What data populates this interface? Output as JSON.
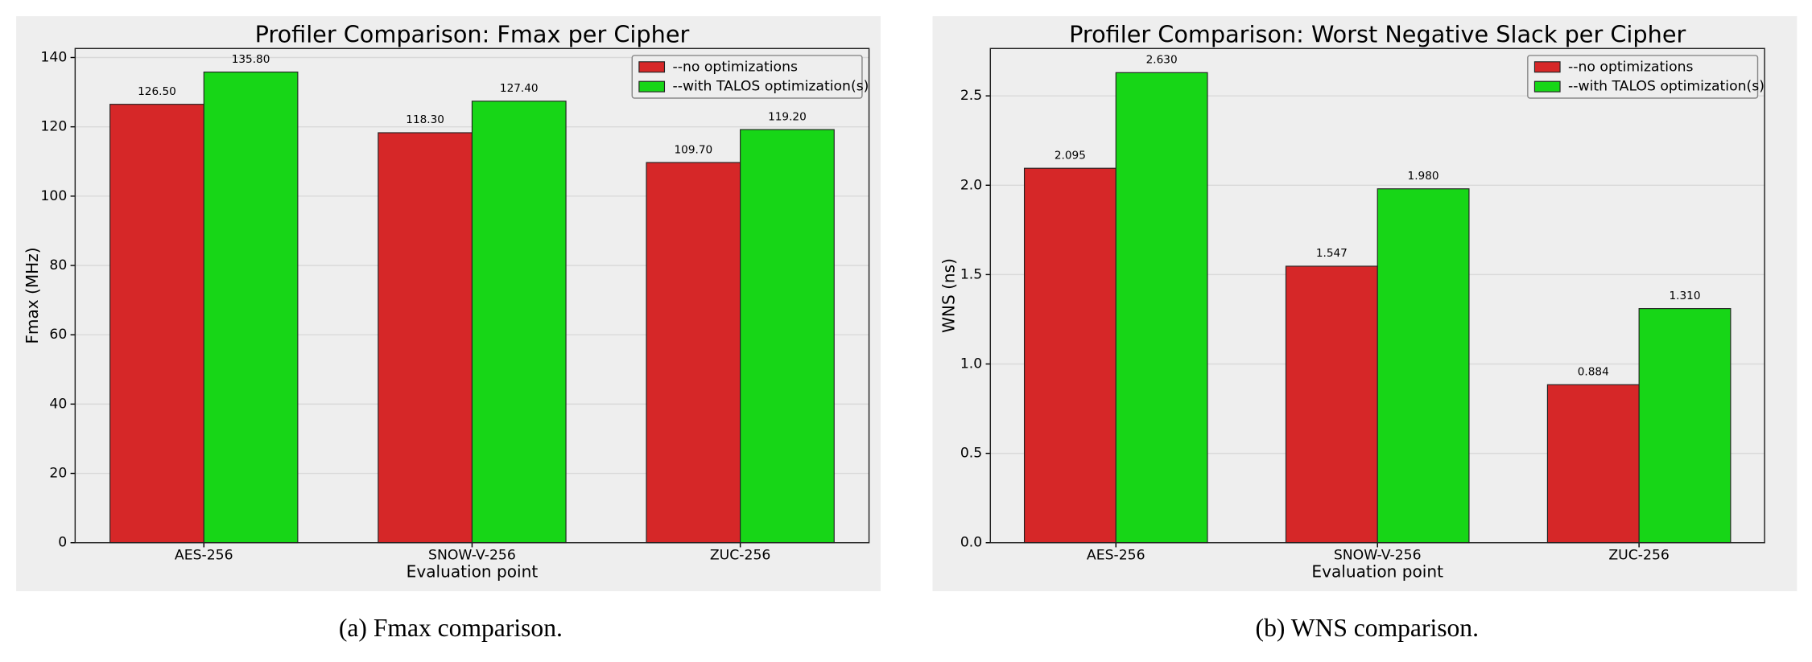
{
  "chart_data": [
    {
      "type": "bar",
      "title": "Profiler Comparison: Fmax per Cipher",
      "xlabel": "Evaluation point",
      "ylabel": "Fmax (MHz)",
      "caption": "(a) Fmax comparison.",
      "categories": [
        "AES-256",
        "SNOW-V-256",
        "ZUC-256"
      ],
      "series": [
        {
          "name": "--no optimizations",
          "color": "#d62728",
          "values": [
            126.5,
            118.3,
            109.7
          ],
          "value_labels": [
            "126.50",
            "118.30",
            "109.70"
          ]
        },
        {
          "name": "--with TALOS optimization(s)",
          "color": "#17d617",
          "values": [
            135.8,
            127.4,
            119.2
          ],
          "value_labels": [
            "135.80",
            "127.40",
            "119.20"
          ]
        }
      ],
      "ylim": [
        0,
        142.6
      ],
      "yticks": [
        0,
        20,
        40,
        60,
        80,
        100,
        120,
        140
      ],
      "grid": true,
      "legend": "upper right"
    },
    {
      "type": "bar",
      "title": "Profiler Comparison: Worst Negative Slack per Cipher",
      "xlabel": "Evaluation point",
      "ylabel": "WNS (ns)",
      "caption": "(b) WNS comparison.",
      "categories": [
        "AES-256",
        "SNOW-V-256",
        "ZUC-256"
      ],
      "series": [
        {
          "name": "--no optimizations",
          "color": "#d62728",
          "values": [
            2.095,
            1.547,
            0.884
          ],
          "value_labels": [
            "2.095",
            "1.547",
            "0.884"
          ]
        },
        {
          "name": "--with TALOS optimization(s)",
          "color": "#17d617",
          "values": [
            2.63,
            1.98,
            1.31
          ],
          "value_labels": [
            "2.630",
            "1.980",
            "1.310"
          ]
        }
      ],
      "ylim": [
        0,
        2.765
      ],
      "yticks": [
        {
          "value": 0,
          "label": "0.0"
        },
        {
          "value": 0.5,
          "label": "0.5"
        },
        {
          "value": 1,
          "label": "1.0"
        },
        {
          "value": 1.5,
          "label": "1.5"
        },
        {
          "value": 2,
          "label": "2.0"
        },
        {
          "value": 2.5,
          "label": "2.5"
        }
      ],
      "grid": true,
      "legend": "upper right"
    }
  ]
}
